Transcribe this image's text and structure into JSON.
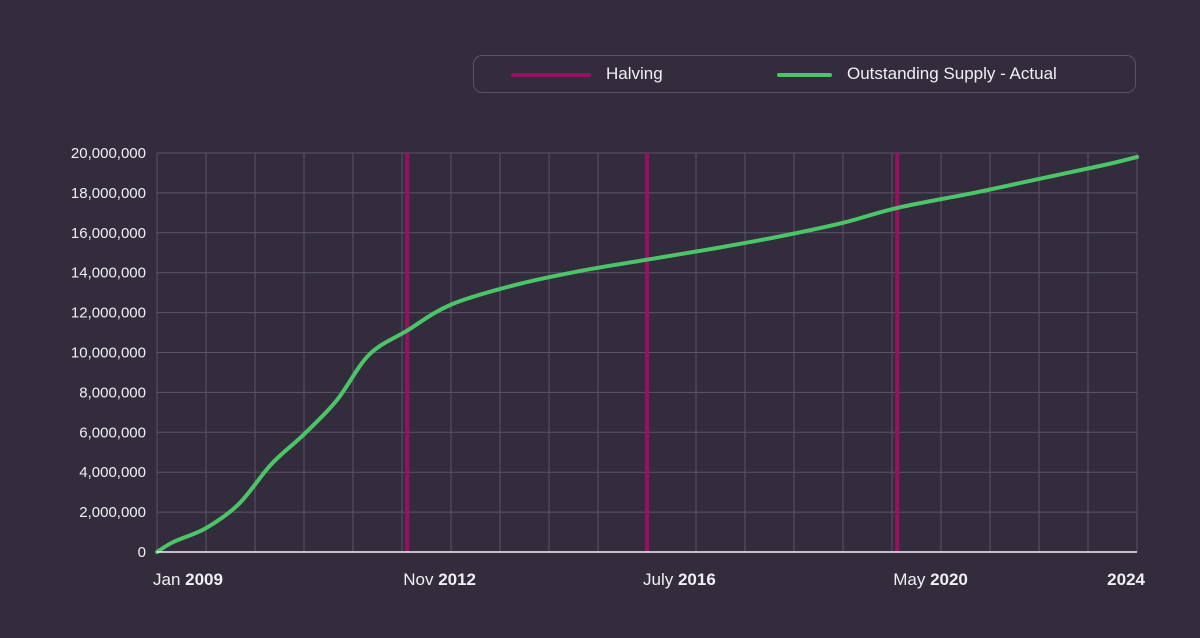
{
  "legend": {
    "halving_label": "Halving",
    "supply_label": "Outstanding Supply - Actual"
  },
  "colors": {
    "background": "#322c3c",
    "halving": "#9b0f63",
    "supply": "#4cc568",
    "grid": "#5b5568",
    "axis": "#f2eef5"
  },
  "chart_data": {
    "type": "line",
    "title": "",
    "xlabel": "",
    "ylabel": "",
    "ylim": [
      0,
      20000000
    ],
    "xlim": [
      2009.0,
      2024.0
    ],
    "y_ticks": [
      "20,000,000",
      "18,000,000",
      "16,000,000",
      "14,000,000",
      "12,000,000",
      "10,000,000",
      "8,000,000",
      "6,000,000",
      "4,000,000",
      "2,000,000",
      "0"
    ],
    "x_tick_labels": [
      {
        "month": "Jan",
        "year": "2009",
        "x": 2009.0
      },
      {
        "month": "Nov",
        "year": "2012",
        "x": 2012.83
      },
      {
        "month": "July",
        "year": "2016",
        "x": 2016.5
      },
      {
        "month": "May",
        "year": "2020",
        "x": 2020.33
      },
      {
        "month": "",
        "year": "2024",
        "x": 2024.0
      }
    ],
    "grid": true,
    "legend_position": "top-right",
    "halvings": [
      {
        "date": "Nov 2012",
        "x": 2012.83
      },
      {
        "date": "July 2016",
        "x": 2016.5
      },
      {
        "date": "May 2020",
        "x": 2020.33
      }
    ],
    "series": [
      {
        "name": "Outstanding Supply - Actual",
        "x": [
          2009.0,
          2009.25,
          2009.75,
          2010.25,
          2010.75,
          2011.25,
          2011.75,
          2012.25,
          2012.83,
          2013.5,
          2014.5,
          2015.5,
          2016.5,
          2017.5,
          2018.5,
          2019.5,
          2020.33,
          2021.5,
          2022.5,
          2023.5,
          2024.0
        ],
        "values": [
          0,
          500000,
          1200000,
          2400000,
          4400000,
          5900000,
          7600000,
          9900000,
          11100000,
          12400000,
          13400000,
          14100000,
          14650000,
          15200000,
          15800000,
          16500000,
          17250000,
          18000000,
          18700000,
          19400000,
          19800000
        ]
      }
    ]
  }
}
